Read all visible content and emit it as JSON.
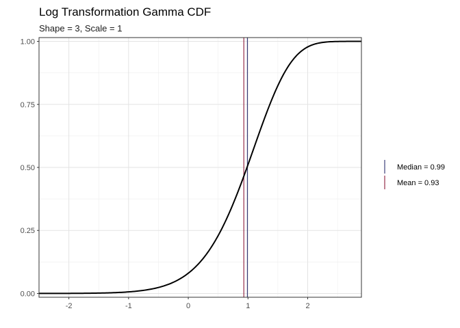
{
  "chart_data": {
    "type": "line",
    "title": "Log Transformation Gamma CDF",
    "subtitle": "Shape = 3, Scale = 1",
    "xlabel": "",
    "ylabel": "",
    "xlim": [
      -2.5,
      2.9
    ],
    "ylim": [
      -0.015,
      1.015
    ],
    "x_ticks": [
      -2,
      -1,
      0,
      1,
      2
    ],
    "y_ticks": [
      0,
      0.25,
      0.5,
      0.75,
      1
    ],
    "x_tick_labels": [
      "-2",
      "-1",
      "0",
      "1",
      "2"
    ],
    "y_tick_labels": [
      "0.00",
      "0.25",
      "0.50",
      "0.75",
      "1.00"
    ],
    "grid": true,
    "distribution": {
      "shape": 3,
      "scale": 1
    },
    "series": [
      {
        "color": "#000000",
        "x": [],
        "y": []
      }
    ],
    "reference_lines": [
      {
        "label": "Median = 0.99",
        "value": 0.99,
        "color": "#2b2f6e"
      },
      {
        "label": "Mean = 0.93",
        "value": 0.93,
        "color": "#8b1a3a"
      }
    ],
    "legend_position": "right"
  }
}
